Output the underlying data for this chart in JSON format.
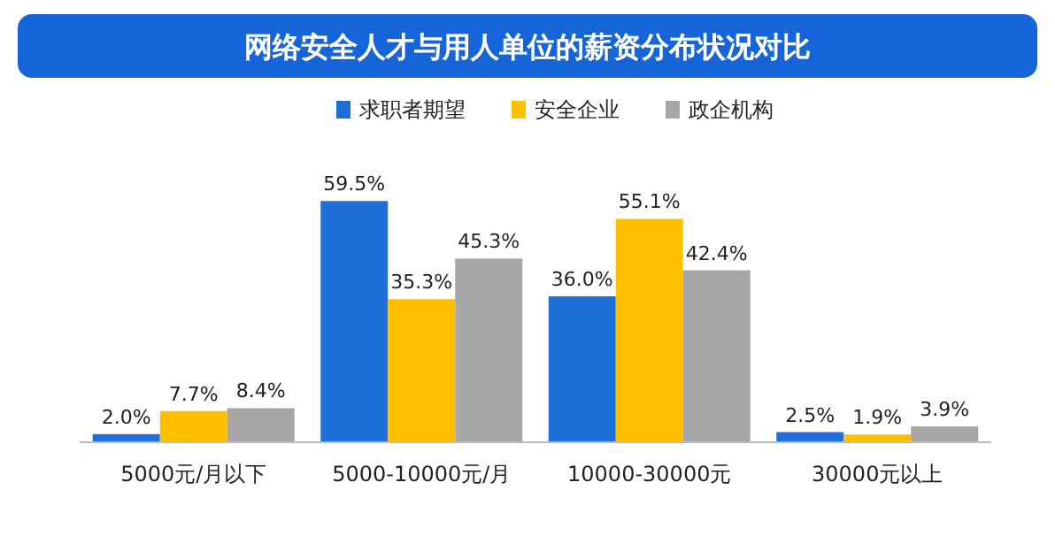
{
  "chart_data": {
    "type": "bar",
    "title": "网络安全人才与用人单位的薪资分布状况对比",
    "categories": [
      "5000元/月以下",
      "5000-10000元/月",
      "10000-30000元",
      "30000元以上"
    ],
    "series": [
      {
        "name": "求职者期望",
        "color": "#1f6fd8",
        "values": [
          2.0,
          59.5,
          36.0,
          2.5
        ],
        "value_labels": [
          "2.0%",
          "59.5%",
          "36.0%",
          "2.5%"
        ]
      },
      {
        "name": "安全企业",
        "color": "#ffc000",
        "values": [
          7.7,
          35.3,
          55.1,
          1.9
        ],
        "value_labels": [
          "7.7%",
          "35.3%",
          "55.1%",
          "1.9%"
        ]
      },
      {
        "name": "政企机构",
        "color": "#a6a6a6",
        "values": [
          8.4,
          45.3,
          42.4,
          3.9
        ],
        "value_labels": [
          "8.4%",
          "45.3%",
          "42.4%",
          "3.9%"
        ]
      }
    ],
    "legend": "top",
    "grid": false
  }
}
